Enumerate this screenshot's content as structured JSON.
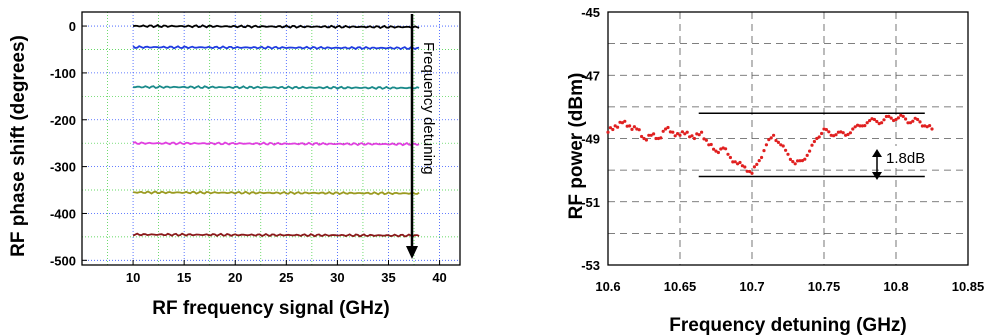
{
  "chart_data": [
    {
      "type": "line",
      "xlabel": "RF frequency signal (GHz)",
      "ylabel": "RF phase shift (degrees)",
      "xlim": [
        5,
        42
      ],
      "ylim": [
        -510,
        30
      ],
      "x_ticks": [
        10,
        15,
        20,
        25,
        30,
        35,
        40
      ],
      "y_ticks": [
        0,
        -100,
        -200,
        -300,
        -400,
        -500
      ],
      "grid": true,
      "x_range": [
        10,
        38
      ],
      "series": [
        {
          "color": "#000000",
          "level": 0
        },
        {
          "color": "#1f3de0",
          "level": -45
        },
        {
          "color": "#1a8a8a",
          "level": -130
        },
        {
          "color": "#e040e0",
          "level": -250
        },
        {
          "color": "#9a9a20",
          "level": -355
        },
        {
          "color": "#8a1a1a",
          "level": -445
        }
      ],
      "annotation": {
        "text": "Frequency detuning",
        "arrow_direction": "down"
      }
    },
    {
      "type": "scatter",
      "xlabel": "Frequency detuning (GHz)",
      "ylabel": "RF power (dBm)",
      "xlim": [
        10.6,
        10.85
      ],
      "ylim": [
        -53,
        -45
      ],
      "x_ticks": [
        10.6,
        10.65,
        10.7,
        10.75,
        10.8,
        10.85
      ],
      "y_ticks": [
        -45,
        -47,
        -49,
        -51,
        -53
      ],
      "grid": true,
      "series_color": "#e02020",
      "x": [
        10.6,
        10.605,
        10.61,
        10.615,
        10.62,
        10.625,
        10.63,
        10.635,
        10.64,
        10.645,
        10.65,
        10.655,
        10.66,
        10.665,
        10.67,
        10.675,
        10.68,
        10.685,
        10.69,
        10.695,
        10.7,
        10.705,
        10.71,
        10.715,
        10.72,
        10.725,
        10.73,
        10.735,
        10.74,
        10.745,
        10.75,
        10.755,
        10.76,
        10.765,
        10.77,
        10.775,
        10.78,
        10.785,
        10.79,
        10.795,
        10.8,
        10.805,
        10.81,
        10.815,
        10.82,
        10.825
      ],
      "y": [
        -48.8,
        -48.6,
        -48.5,
        -48.6,
        -48.7,
        -49.0,
        -48.9,
        -49.0,
        -48.7,
        -48.8,
        -48.9,
        -48.8,
        -49.0,
        -48.8,
        -49.2,
        -49.4,
        -49.3,
        -49.6,
        -49.8,
        -49.9,
        -50.1,
        -49.7,
        -49.2,
        -48.9,
        -49.2,
        -49.5,
        -49.8,
        -49.7,
        -49.4,
        -49.0,
        -48.7,
        -48.9,
        -48.8,
        -48.9,
        -48.7,
        -48.6,
        -48.5,
        -48.4,
        -48.5,
        -48.3,
        -48.4,
        -48.3,
        -48.5,
        -48.4,
        -48.6,
        -48.7
      ],
      "ref_lines": [
        -48.2,
        -50.2
      ],
      "annotation": {
        "text": "1.8dB"
      }
    }
  ]
}
